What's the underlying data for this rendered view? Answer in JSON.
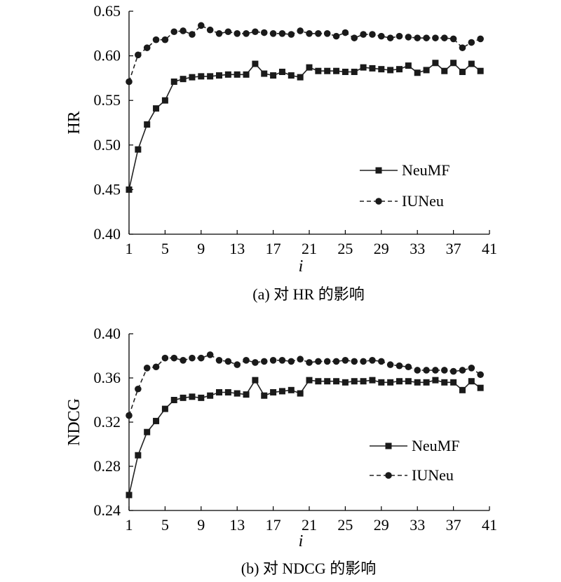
{
  "chart_data": [
    {
      "type": "line",
      "caption": "(a) 对 HR 的影响",
      "xlabel": "i",
      "ylabel": "HR",
      "xlim": [
        1,
        41
      ],
      "ylim": [
        0.4,
        0.65
      ],
      "xticks": [
        1,
        5,
        9,
        13,
        17,
        21,
        25,
        29,
        33,
        37,
        41
      ],
      "yticks": [
        0.4,
        0.45,
        0.5,
        0.55,
        0.6,
        0.65
      ],
      "ytick_labels": [
        "0.40",
        "0.45",
        "0.50",
        "0.55",
        "0.60",
        "0.65"
      ],
      "legend_position": "right-middle",
      "x": [
        1,
        2,
        3,
        4,
        5,
        6,
        7,
        8,
        9,
        10,
        11,
        12,
        13,
        14,
        15,
        16,
        17,
        18,
        19,
        20,
        21,
        22,
        23,
        24,
        25,
        26,
        27,
        28,
        29,
        30,
        31,
        32,
        33,
        34,
        35,
        36,
        37,
        38,
        39,
        40
      ],
      "series": [
        {
          "name": "NeuMF",
          "style": "solid-square",
          "values": [
            0.45,
            0.495,
            0.523,
            0.541,
            0.55,
            0.571,
            0.574,
            0.576,
            0.577,
            0.577,
            0.578,
            0.579,
            0.579,
            0.579,
            0.591,
            0.58,
            0.578,
            0.582,
            0.578,
            0.576,
            0.587,
            0.583,
            0.583,
            0.583,
            0.582,
            0.582,
            0.587,
            0.586,
            0.585,
            0.584,
            0.585,
            0.589,
            0.581,
            0.584,
            0.592,
            0.583,
            0.592,
            0.582,
            0.591,
            0.583
          ]
        },
        {
          "name": "IUNeu",
          "style": "dashed-circle",
          "values": [
            0.571,
            0.601,
            0.609,
            0.618,
            0.618,
            0.627,
            0.628,
            0.624,
            0.634,
            0.629,
            0.625,
            0.627,
            0.625,
            0.625,
            0.627,
            0.626,
            0.625,
            0.625,
            0.624,
            0.628,
            0.625,
            0.625,
            0.625,
            0.622,
            0.626,
            0.62,
            0.624,
            0.624,
            0.622,
            0.62,
            0.622,
            0.621,
            0.62,
            0.62,
            0.62,
            0.62,
            0.619,
            0.609,
            0.615,
            0.619
          ]
        }
      ]
    },
    {
      "type": "line",
      "caption": "(b) 对 NDCG 的影响",
      "xlabel": "i",
      "ylabel": "NDCG",
      "xlim": [
        1,
        41
      ],
      "ylim": [
        0.24,
        0.4
      ],
      "xticks": [
        1,
        5,
        9,
        13,
        17,
        21,
        25,
        29,
        33,
        37,
        41
      ],
      "yticks": [
        0.24,
        0.28,
        0.32,
        0.36,
        0.4
      ],
      "ytick_labels": [
        "0.24",
        "0.28",
        "0.32",
        "0.36",
        "0.40"
      ],
      "legend_position": "right-middle",
      "x": [
        1,
        2,
        3,
        4,
        5,
        6,
        7,
        8,
        9,
        10,
        11,
        12,
        13,
        14,
        15,
        16,
        17,
        18,
        19,
        20,
        21,
        22,
        23,
        24,
        25,
        26,
        27,
        28,
        29,
        30,
        31,
        32,
        33,
        34,
        35,
        36,
        37,
        38,
        39,
        40
      ],
      "series": [
        {
          "name": "NeuMF",
          "style": "solid-square",
          "values": [
            0.254,
            0.29,
            0.311,
            0.321,
            0.332,
            0.34,
            0.342,
            0.343,
            0.342,
            0.344,
            0.347,
            0.347,
            0.346,
            0.345,
            0.358,
            0.344,
            0.347,
            0.348,
            0.349,
            0.346,
            0.358,
            0.357,
            0.357,
            0.357,
            0.356,
            0.357,
            0.357,
            0.358,
            0.356,
            0.356,
            0.357,
            0.357,
            0.356,
            0.356,
            0.358,
            0.356,
            0.356,
            0.349,
            0.357,
            0.351
          ]
        },
        {
          "name": "IUNeu",
          "style": "dashed-circle",
          "values": [
            0.326,
            0.35,
            0.369,
            0.37,
            0.378,
            0.378,
            0.376,
            0.378,
            0.378,
            0.381,
            0.376,
            0.375,
            0.372,
            0.376,
            0.374,
            0.375,
            0.376,
            0.376,
            0.375,
            0.377,
            0.374,
            0.375,
            0.375,
            0.375,
            0.376,
            0.375,
            0.375,
            0.376,
            0.375,
            0.372,
            0.371,
            0.37,
            0.367,
            0.367,
            0.367,
            0.367,
            0.366,
            0.367,
            0.369,
            0.363
          ]
        }
      ]
    }
  ]
}
